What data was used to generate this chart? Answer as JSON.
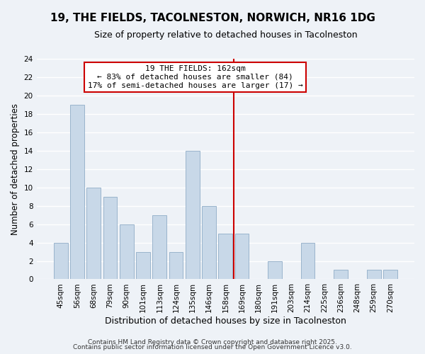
{
  "title": "19, THE FIELDS, TACOLNESTON, NORWICH, NR16 1DG",
  "subtitle": "Size of property relative to detached houses in Tacolneston",
  "xlabel": "Distribution of detached houses by size in Tacolneston",
  "ylabel": "Number of detached properties",
  "categories": [
    "45sqm",
    "56sqm",
    "68sqm",
    "79sqm",
    "90sqm",
    "101sqm",
    "113sqm",
    "124sqm",
    "135sqm",
    "146sqm",
    "158sqm",
    "169sqm",
    "180sqm",
    "191sqm",
    "203sqm",
    "214sqm",
    "225sqm",
    "236sqm",
    "248sqm",
    "259sqm",
    "270sqm"
  ],
  "values": [
    4,
    19,
    10,
    9,
    6,
    3,
    7,
    3,
    14,
    8,
    5,
    5,
    0,
    2,
    0,
    4,
    0,
    1,
    0,
    1,
    1
  ],
  "bar_color": "#c8d8e8",
  "bar_edge_color": "#9ab4cc",
  "vline_x_idx": 10.5,
  "vline_color": "#cc0000",
  "annotation_title": "19 THE FIELDS: 162sqm",
  "annotation_line1": "← 83% of detached houses are smaller (84)",
  "annotation_line2": "17% of semi-detached houses are larger (17) →",
  "annotation_box_color": "#ffffff",
  "annotation_box_edge": "#cc0000",
  "ylim": [
    0,
    24
  ],
  "yticks": [
    0,
    2,
    4,
    6,
    8,
    10,
    12,
    14,
    16,
    18,
    20,
    22,
    24
  ],
  "title_fontsize": 11,
  "subtitle_fontsize": 9,
  "xlabel_fontsize": 9,
  "ylabel_fontsize": 8.5,
  "tick_fontsize": 7.5,
  "ann_fontsize": 8,
  "footer1": "Contains HM Land Registry data © Crown copyright and database right 2025.",
  "footer2": "Contains public sector information licensed under the Open Government Licence v3.0.",
  "background_color": "#eef2f7",
  "plot_bg_color": "#eef2f7",
  "grid_color": "#ffffff",
  "footer_fontsize": 6.5
}
